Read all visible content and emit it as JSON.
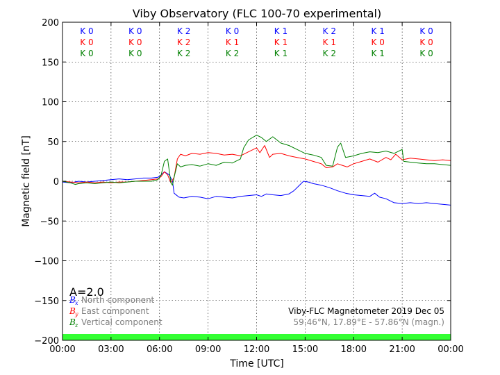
{
  "chart_data": {
    "type": "line",
    "title": "Viby Observatory (FLC 100-70 experimental)",
    "xlabel": "Time [UTC]",
    "ylabel": "Magnetic field [nT]",
    "xlim": [
      0,
      24
    ],
    "ylim": [
      -200,
      200
    ],
    "x_ticks": [
      "00:00",
      "03:00",
      "06:00",
      "09:00",
      "12:00",
      "15:00",
      "18:00",
      "21:00",
      "00:00"
    ],
    "y_ticks": [
      "200",
      "150",
      "100",
      "50",
      "0",
      "−50",
      "−100",
      "−150",
      "−200"
    ],
    "grid": true,
    "k_indices": {
      "North": [
        "K 0",
        "K 0",
        "K 2",
        "K 0",
        "K 1",
        "K 2",
        "K 1",
        "K 0"
      ],
      "East": [
        "K 0",
        "K 0",
        "K 2",
        "K 1",
        "K 1",
        "K 1",
        "K 0",
        "K 0"
      ],
      "Vertical": [
        "K 0",
        "K 0",
        "K 2",
        "K 2",
        "K 1",
        "K 2",
        "K 1",
        "K 0"
      ]
    },
    "a_index": "A=2.0",
    "activity_bar_color": "#33ff33",
    "legend": [
      {
        "symbol": "B",
        "sub": "x",
        "label": "North component",
        "color": "#0000ff"
      },
      {
        "symbol": "B",
        "sub": "y",
        "label": "East component",
        "color": "#ff0000"
      },
      {
        "symbol": "B",
        "sub": "z",
        "label": "Vertical component",
        "color": "#008000"
      }
    ],
    "info_line1": "Viby-FLC Magnetometer 2019 Dec 05",
    "info_line2": "59.46°N, 17.89°E - 57.86°N (magn.)",
    "series": [
      {
        "name": "North component",
        "color": "#0000ff",
        "x": [
          0,
          0.5,
          1,
          1.5,
          2,
          2.5,
          3,
          3.5,
          4,
          4.5,
          5,
          5.5,
          5.9,
          6.1,
          6.3,
          6.6,
          6.8,
          6.9,
          7.2,
          7.5,
          8,
          8.5,
          9,
          9.5,
          10,
          10.5,
          11,
          11.5,
          12,
          12.3,
          12.6,
          13,
          13.5,
          14,
          14.3,
          14.6,
          14.9,
          15.2,
          15.5,
          16,
          16.5,
          17,
          17.5,
          18,
          18.5,
          19,
          19.3,
          19.6,
          20,
          20.5,
          21,
          21.5,
          22,
          22.5,
          23,
          23.5,
          24
        ],
        "y": [
          -1,
          -2,
          0,
          -1,
          0,
          1,
          2,
          3,
          2,
          3,
          4,
          4,
          5,
          8,
          12,
          8,
          0,
          -15,
          -20,
          -21,
          -19,
          -20,
          -22,
          -19,
          -20,
          -21,
          -19,
          -18,
          -17,
          -19,
          -16,
          -17,
          -18,
          -16,
          -12,
          -6,
          0,
          -1,
          -3,
          -5,
          -8,
          -12,
          -15,
          -17,
          -18,
          -19,
          -15,
          -20,
          -22,
          -27,
          -28,
          -27,
          -28,
          -27,
          -28,
          -29,
          -30
        ]
      },
      {
        "name": "East component",
        "color": "#ff0000",
        "x": [
          0,
          0.5,
          1,
          1.5,
          2,
          2.5,
          3,
          3.5,
          4,
          4.5,
          5,
          5.5,
          5.9,
          6.1,
          6.3,
          6.5,
          6.7,
          6.9,
          7.1,
          7.3,
          7.6,
          8,
          8.5,
          9,
          9.5,
          10,
          10.5,
          11,
          11.5,
          12,
          12.2,
          12.5,
          12.8,
          13,
          13.5,
          14,
          14.5,
          15,
          15.5,
          16,
          16.3,
          16.7,
          17,
          17.3,
          17.6,
          18,
          18.5,
          19,
          19.5,
          20,
          20.3,
          20.6,
          21,
          21.5,
          22,
          22.5,
          23,
          23.5,
          24
        ],
        "y": [
          0,
          -1,
          -2,
          -1,
          -2,
          -1,
          -2,
          -1,
          -1,
          0,
          1,
          2,
          3,
          6,
          12,
          8,
          -2,
          5,
          28,
          34,
          32,
          35,
          34,
          36,
          35,
          33,
          34,
          32,
          37,
          42,
          36,
          45,
          30,
          34,
          35,
          32,
          30,
          28,
          25,
          22,
          17,
          18,
          22,
          20,
          18,
          22,
          25,
          28,
          24,
          30,
          27,
          34,
          27,
          29,
          28,
          27,
          26,
          27,
          26
        ]
      },
      {
        "name": "Vertical component",
        "color": "#008000",
        "x": [
          0,
          0.5,
          0.8,
          1,
          1.5,
          2,
          2.5,
          3,
          3.5,
          4,
          4.5,
          5,
          5.5,
          5.9,
          6.1,
          6.3,
          6.5,
          6.7,
          6.8,
          6.9,
          7.1,
          7.3,
          7.6,
          8,
          8.5,
          9,
          9.5,
          10,
          10.5,
          11,
          11.2,
          11.5,
          12,
          12.3,
          12.6,
          13,
          13.5,
          14,
          14.5,
          15,
          15.5,
          16,
          16.3,
          16.7,
          17,
          17.2,
          17.5,
          18,
          18.5,
          19,
          19.5,
          20,
          20.5,
          21,
          21.1,
          21.5,
          22,
          22.5,
          23,
          23.5,
          24
        ],
        "y": [
          0,
          -2,
          -4,
          -3,
          -2,
          -3,
          -2,
          -1,
          -2,
          -1,
          0,
          0,
          0,
          2,
          8,
          25,
          28,
          -2,
          -5,
          5,
          22,
          18,
          20,
          21,
          19,
          22,
          20,
          24,
          23,
          28,
          42,
          52,
          58,
          55,
          50,
          56,
          48,
          45,
          40,
          35,
          33,
          30,
          20,
          19,
          43,
          48,
          30,
          32,
          35,
          37,
          36,
          38,
          35,
          40,
          25,
          24,
          23,
          22,
          22,
          21,
          20
        ]
      }
    ]
  }
}
